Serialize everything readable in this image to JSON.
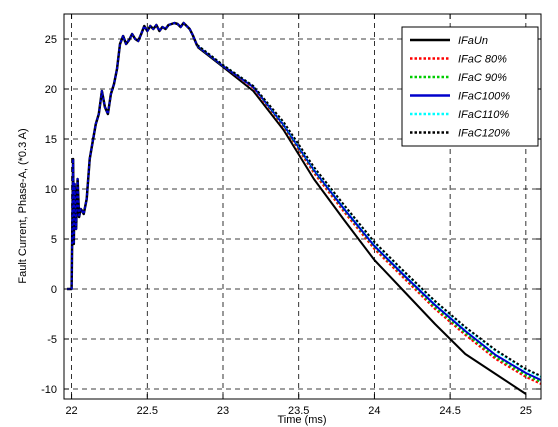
{
  "chart_data": {
    "type": "line",
    "title": "",
    "xlabel": "Time (ms)",
    "ylabel": "Fault Current, Phase-A, (*0.3 A)",
    "xlim": [
      21.95,
      25.1
    ],
    "ylim": [
      -11,
      27.5
    ],
    "xticks": [
      22,
      22.5,
      23,
      23.5,
      24,
      24.5,
      25
    ],
    "xtick_labels": [
      "22",
      "22.5",
      "23",
      "23.5",
      "24",
      "24.5",
      "25"
    ],
    "yticks": [
      -10,
      -5,
      0,
      5,
      10,
      15,
      20,
      25
    ],
    "ytick_labels": [
      "-10",
      "-5",
      "0",
      "5",
      "10",
      "15",
      "20",
      "25"
    ],
    "grid": true,
    "legend_position": "top-right",
    "series": [
      {
        "name": "IFaUn",
        "color": "#000000",
        "dash": "solid",
        "x": [
          22.83,
          23.0,
          23.2,
          23.4,
          23.6,
          23.8,
          24.0,
          24.2,
          24.4,
          24.6,
          24.8,
          25.0
        ],
        "y": [
          24.2,
          22.2,
          19.8,
          15.9,
          11.0,
          6.9,
          2.9,
          -0.3,
          -3.5,
          -6.5,
          -8.5,
          -10.5
        ]
      },
      {
        "name": "IFaC 80%",
        "color": "#ff0000",
        "dash": "dotted",
        "x": [
          22.83,
          23.0,
          23.2,
          23.4,
          23.6,
          23.8,
          24.0,
          24.2,
          24.4,
          24.6,
          24.8,
          25.0,
          25.1
        ],
        "y": [
          24.3,
          22.3,
          20.1,
          16.2,
          11.6,
          7.7,
          4.0,
          1.0,
          -2.0,
          -4.6,
          -7.0,
          -8.8,
          -9.5
        ]
      },
      {
        "name": "IFaC 90%",
        "color": "#00cc00",
        "dash": "dotted",
        "x": [
          22.83,
          23.0,
          23.2,
          23.4,
          23.6,
          23.8,
          24.0,
          24.2,
          24.4,
          24.6,
          24.8,
          25.0,
          25.1
        ],
        "y": [
          24.3,
          22.3,
          20.2,
          16.3,
          11.8,
          7.9,
          4.2,
          1.2,
          -1.8,
          -4.4,
          -6.8,
          -8.6,
          -9.3
        ]
      },
      {
        "name": "IFaC100%",
        "color": "#0000cc",
        "dash": "solid",
        "x": [
          22.83,
          23.0,
          23.2,
          23.4,
          23.6,
          23.8,
          24.0,
          24.2,
          24.4,
          24.6,
          24.8,
          25.0,
          25.1
        ],
        "y": [
          24.3,
          22.3,
          20.2,
          16.4,
          11.9,
          8.0,
          4.3,
          1.3,
          -1.6,
          -4.2,
          -6.6,
          -8.4,
          -9.1
        ]
      },
      {
        "name": "IFaC110%",
        "color": "#00ffff",
        "dash": "dotted",
        "x": [
          22.83,
          23.0,
          23.2,
          23.4,
          23.6,
          23.8,
          24.0,
          24.2,
          24.4,
          24.6,
          24.8,
          25.0,
          25.1
        ],
        "y": [
          24.4,
          22.4,
          20.3,
          16.6,
          12.1,
          8.3,
          4.6,
          1.6,
          -1.3,
          -3.9,
          -6.2,
          -8.1,
          -8.8
        ]
      },
      {
        "name": "IFaC120%",
        "color": "#000000",
        "dash": "dotted",
        "x": [
          22.83,
          23.0,
          23.2,
          23.4,
          23.6,
          23.8,
          24.0,
          24.2,
          24.4,
          24.6,
          24.8,
          25.0,
          25.1
        ],
        "y": [
          24.4,
          22.4,
          20.3,
          16.7,
          12.2,
          8.4,
          4.7,
          1.7,
          -1.2,
          -3.8,
          -6.1,
          -8.0,
          -8.7
        ]
      }
    ],
    "common_segment": {
      "x": [
        21.97,
        21.99,
        22.0,
        22.01,
        22.015,
        22.02,
        22.03,
        22.04,
        22.05,
        22.06,
        22.07,
        22.08,
        22.1,
        22.12,
        22.14,
        22.16,
        22.18,
        22.2,
        22.22,
        22.24,
        22.26,
        22.28,
        22.3,
        22.32,
        22.34,
        22.36,
        22.38,
        22.4,
        22.42,
        22.44,
        22.46,
        22.48,
        22.5,
        22.52,
        22.54,
        22.56,
        22.58,
        22.6,
        22.62,
        22.64,
        22.66,
        22.68,
        22.7,
        22.72,
        22.74,
        22.76,
        22.78,
        22.8,
        22.83
      ],
      "y": [
        0,
        0,
        0,
        13,
        4.5,
        10.5,
        6.0,
        11.0,
        7.2,
        8.0,
        7.8,
        7.5,
        9.0,
        13.0,
        14.8,
        16.5,
        17.5,
        19.8,
        18.2,
        17.5,
        19.5,
        20.5,
        22.0,
        24.5,
        25.3,
        24.5,
        24.9,
        25.5,
        25.0,
        24.8,
        25.5,
        26.3,
        25.8,
        26.3,
        26.0,
        26.4,
        25.8,
        26.2,
        26.0,
        26.4,
        26.5,
        26.6,
        26.5,
        26.2,
        26.6,
        26.3,
        26.0,
        25.4,
        24.3
      ],
      "colors": [
        "#000000",
        "#ff0000",
        "#00cc00",
        "#0000cc",
        "#00ffff",
        "#000000"
      ]
    }
  }
}
